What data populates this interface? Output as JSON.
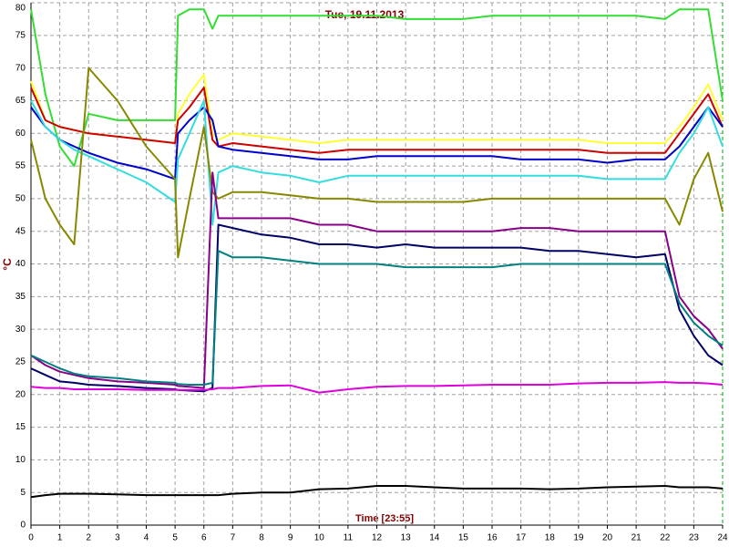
{
  "chart_data": {
    "type": "line",
    "title": "Tue, 19.11.2013",
    "x_label": "Time [23:55]",
    "y_label": "°C",
    "grid": true,
    "xlim": [
      0,
      24
    ],
    "ylim": [
      0,
      80
    ],
    "xticks": [
      0,
      1,
      2,
      3,
      4,
      5,
      6,
      7,
      8,
      9,
      10,
      11,
      12,
      13,
      14,
      15,
      16,
      17,
      18,
      19,
      20,
      21,
      22,
      23,
      24
    ],
    "yticks": [
      0,
      5,
      10,
      15,
      20,
      25,
      30,
      35,
      40,
      45,
      50,
      55,
      60,
      65,
      70,
      75,
      80
    ],
    "x": [
      0,
      0.5,
      1,
      1.5,
      2,
      3,
      4,
      5,
      5.1,
      5.5,
      6,
      6.3,
      6.5,
      7,
      8,
      9,
      10,
      11,
      12,
      13,
      14,
      15,
      16,
      17,
      18,
      19,
      20,
      21,
      22,
      22.5,
      23,
      23.5,
      24
    ],
    "series": [
      {
        "color": "#33dd33",
        "values": [
          79,
          66,
          58,
          55,
          63,
          62,
          62,
          62,
          78,
          79,
          79,
          76,
          78,
          78,
          78,
          78,
          78,
          78,
          78,
          77.5,
          77.5,
          77.5,
          78,
          78,
          78,
          78,
          78,
          78,
          77.5,
          79,
          79,
          79,
          65
        ]
      },
      {
        "color": "#ffff33",
        "values": [
          68,
          62,
          61,
          60.5,
          60,
          59.5,
          59,
          58.5,
          63,
          66,
          69,
          60,
          59,
          60,
          59.5,
          59,
          58.5,
          59,
          59,
          59,
          59,
          59,
          59,
          59,
          59,
          59,
          58.5,
          58.5,
          58.5,
          61,
          64,
          67.5,
          62
        ]
      },
      {
        "color": "#cc0000",
        "values": [
          67,
          62,
          61,
          60.5,
          60,
          59.5,
          59,
          58.5,
          62,
          64,
          67,
          59,
          58,
          58.5,
          58,
          57.5,
          57,
          57.5,
          57.5,
          57.5,
          57.5,
          57.5,
          57.5,
          57.5,
          57.5,
          57.5,
          57,
          57,
          57,
          60,
          63,
          66,
          61
        ]
      },
      {
        "color": "#0000cc",
        "values": [
          64,
          61,
          59,
          58,
          57,
          55.5,
          54.5,
          53,
          60,
          62,
          64,
          62,
          58,
          57.5,
          57,
          56.5,
          56,
          56,
          56.5,
          56.5,
          56.5,
          56.5,
          56.5,
          56,
          56,
          56,
          55.5,
          56,
          56,
          58,
          61,
          64,
          61
        ]
      },
      {
        "color": "#33dddd",
        "values": [
          65,
          61,
          59,
          57.5,
          56.5,
          54.5,
          52.5,
          49.5,
          56,
          60,
          65,
          46,
          54,
          55,
          54,
          53.5,
          52.5,
          53.5,
          53.5,
          53.5,
          53.5,
          53.5,
          53.5,
          53.5,
          53.5,
          53.5,
          53,
          53,
          53,
          57,
          60,
          64,
          58
        ]
      },
      {
        "color": "#888800",
        "values": [
          59,
          50,
          46,
          43,
          70,
          65,
          58,
          53,
          41,
          50,
          61,
          51,
          50,
          51,
          51,
          50.5,
          50,
          50,
          49.5,
          49.5,
          49.5,
          49.5,
          50,
          50,
          50,
          50,
          50,
          50,
          50,
          46,
          53,
          57,
          48
        ]
      },
      {
        "color": "#880088",
        "values": [
          26,
          24.5,
          23.5,
          23,
          22.5,
          22,
          21.8,
          21.5,
          21.3,
          21.2,
          21,
          54,
          47,
          47,
          47,
          47,
          46,
          46,
          45,
          45,
          45,
          45,
          45,
          45.5,
          45.5,
          45,
          45,
          45,
          45,
          35,
          32,
          30,
          27
        ]
      },
      {
        "color": "#000066",
        "values": [
          24,
          23,
          22,
          21.8,
          21.5,
          21.3,
          21,
          20.8,
          20.7,
          20.6,
          20.5,
          21,
          46,
          45.5,
          44.5,
          44,
          43,
          43,
          42.5,
          43,
          42.5,
          42.5,
          42.5,
          42.5,
          42,
          42,
          41.5,
          41,
          41.5,
          33,
          29,
          26,
          24.5
        ]
      },
      {
        "color": "#008080",
        "values": [
          26,
          25,
          24,
          23.2,
          22.8,
          22.5,
          22,
          21.8,
          21.6,
          21.5,
          21.5,
          21.8,
          42,
          41,
          41,
          40.5,
          40,
          40,
          40,
          39.5,
          39.5,
          39.5,
          39.5,
          40,
          40,
          40,
          40,
          40,
          40,
          34,
          31,
          29,
          27.5
        ]
      },
      {
        "color": "#dd00dd",
        "values": [
          21.2,
          21,
          21,
          20.8,
          20.8,
          20.8,
          20.7,
          20.7,
          20.7,
          20.7,
          20.7,
          20.8,
          21,
          21,
          21.3,
          21.4,
          20.3,
          20.8,
          21.2,
          21.3,
          21.3,
          21.4,
          21.5,
          21.5,
          21.5,
          21.7,
          21.8,
          21.8,
          21.9,
          21.8,
          21.8,
          21.7,
          21.5
        ]
      },
      {
        "color": "#000000",
        "values": [
          4.3,
          4.6,
          4.8,
          4.8,
          4.8,
          4.7,
          4.6,
          4.6,
          4.6,
          4.6,
          4.6,
          4.6,
          4.6,
          4.8,
          5,
          5,
          5.5,
          5.6,
          6,
          6,
          5.8,
          5.6,
          5.6,
          5.6,
          5.5,
          5.6,
          5.8,
          5.9,
          6,
          5.8,
          5.8,
          5.8,
          5.6
        ]
      }
    ]
  }
}
